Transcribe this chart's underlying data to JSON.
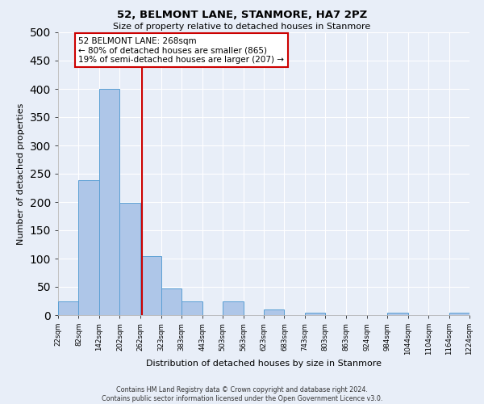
{
  "title": "52, BELMONT LANE, STANMORE, HA7 2PZ",
  "subtitle": "Size of property relative to detached houses in Stanmore",
  "xlabel": "Distribution of detached houses by size in Stanmore",
  "ylabel": "Number of detached properties",
  "bin_edges": [
    22,
    82,
    142,
    202,
    262,
    323,
    383,
    443,
    503,
    563,
    623,
    683,
    743,
    803,
    863,
    924,
    984,
    1044,
    1104,
    1164,
    1224
  ],
  "bin_labels": [
    "22sqm",
    "82sqm",
    "142sqm",
    "202sqm",
    "262sqm",
    "323sqm",
    "383sqm",
    "443sqm",
    "503sqm",
    "563sqm",
    "623sqm",
    "683sqm",
    "743sqm",
    "803sqm",
    "863sqm",
    "924sqm",
    "984sqm",
    "1044sqm",
    "1104sqm",
    "1164sqm",
    "1224sqm"
  ],
  "bar_heights": [
    25,
    238,
    400,
    198,
    105,
    47,
    25,
    0,
    25,
    0,
    10,
    0,
    5,
    0,
    0,
    0,
    5,
    0,
    0,
    5
  ],
  "bar_color": "#aec6e8",
  "bar_edge_color": "#5a9fd4",
  "vline_x": 268,
  "vline_color": "#cc0000",
  "annotation_title": "52 BELMONT LANE: 268sqm",
  "annotation_line1": "← 80% of detached houses are smaller (865)",
  "annotation_line2": "19% of semi-detached houses are larger (207) →",
  "annotation_box_color": "#cc0000",
  "ylim": [
    0,
    500
  ],
  "yticks": [
    0,
    50,
    100,
    150,
    200,
    250,
    300,
    350,
    400,
    450,
    500
  ],
  "footer_line1": "Contains HM Land Registry data © Crown copyright and database right 2024.",
  "footer_line2": "Contains public sector information licensed under the Open Government Licence v3.0.",
  "background_color": "#e8eef8",
  "grid_color": "#ffffff"
}
